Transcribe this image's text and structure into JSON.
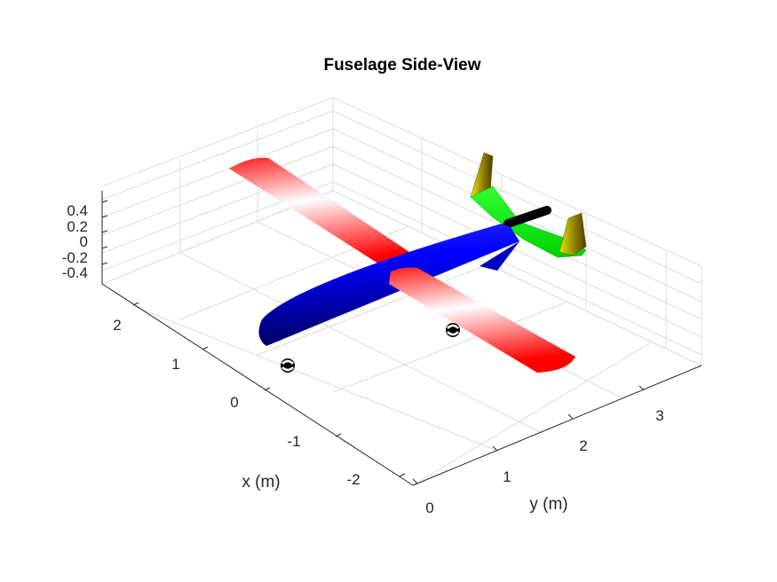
{
  "title": "Fuselage Side-View",
  "axes": {
    "x_label": "x (m)",
    "y_label": "y (m)",
    "x_ticks": [
      "2",
      "1",
      "0",
      "-1",
      "-2"
    ],
    "y_ticks": [
      "0",
      "1",
      "2",
      "3"
    ],
    "z_ticks": [
      "0.4",
      "0.2",
      "0",
      "-0.2",
      "-0.4"
    ]
  },
  "colors": {
    "wing": "#ff0000",
    "fuselage": "#0000ff",
    "tail": "#00ff00",
    "fins": "#ffff00",
    "propeller": "#000000"
  },
  "parts": [
    "wing",
    "fuselage",
    "horizontal-tail",
    "vertical-fins",
    "propeller",
    "wheels"
  ]
}
